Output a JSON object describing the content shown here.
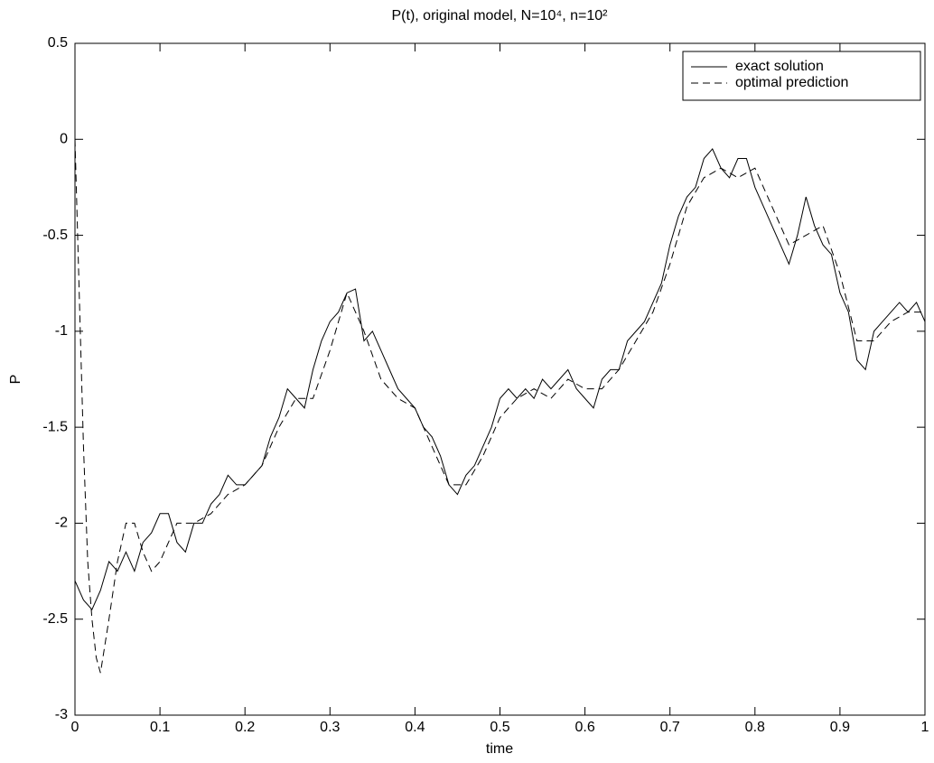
{
  "chart_data": {
    "type": "line",
    "title": "P(t), original model, N=10⁴, n=10²",
    "xlabel": "time",
    "ylabel": "P",
    "xlim": [
      0,
      1
    ],
    "ylim": [
      -3,
      0.5
    ],
    "xticks": [
      0,
      0.1,
      0.2,
      0.3,
      0.4,
      0.5,
      0.6,
      0.7,
      0.8,
      0.9,
      1
    ],
    "yticks": [
      -3,
      -2.5,
      -2,
      -1.5,
      -1,
      -0.5,
      0,
      0.5
    ],
    "grid": false,
    "legend": "upper right",
    "series": [
      {
        "name": "exact solution",
        "color": "#000000",
        "line_style": "solid",
        "x": [
          0,
          0.01,
          0.02,
          0.03,
          0.04,
          0.05,
          0.06,
          0.07,
          0.08,
          0.09,
          0.1,
          0.11,
          0.12,
          0.13,
          0.14,
          0.15,
          0.16,
          0.17,
          0.18,
          0.19,
          0.2,
          0.21,
          0.22,
          0.23,
          0.24,
          0.25,
          0.26,
          0.27,
          0.28,
          0.29,
          0.3,
          0.31,
          0.32,
          0.33,
          0.34,
          0.35,
          0.36,
          0.37,
          0.38,
          0.39,
          0.4,
          0.41,
          0.42,
          0.43,
          0.44,
          0.45,
          0.46,
          0.47,
          0.48,
          0.49,
          0.5,
          0.51,
          0.52,
          0.53,
          0.54,
          0.55,
          0.56,
          0.57,
          0.58,
          0.59,
          0.6,
          0.61,
          0.62,
          0.63,
          0.64,
          0.65,
          0.66,
          0.67,
          0.68,
          0.69,
          0.7,
          0.71,
          0.72,
          0.73,
          0.74,
          0.75,
          0.76,
          0.77,
          0.78,
          0.79,
          0.8,
          0.81,
          0.82,
          0.83,
          0.84,
          0.85,
          0.86,
          0.87,
          0.88,
          0.89,
          0.9,
          0.91,
          0.92,
          0.93,
          0.94,
          0.95,
          0.96,
          0.97,
          0.98,
          0.99,
          1
        ],
        "values": [
          -2.3,
          -2.4,
          -2.45,
          -2.35,
          -2.2,
          -2.25,
          -2.15,
          -2.25,
          -2.1,
          -2.05,
          -1.95,
          -1.95,
          -2.1,
          -2.15,
          -2.0,
          -2.0,
          -1.9,
          -1.85,
          -1.75,
          -1.8,
          -1.8,
          -1.75,
          -1.7,
          -1.55,
          -1.45,
          -1.3,
          -1.35,
          -1.4,
          -1.2,
          -1.05,
          -0.95,
          -0.9,
          -0.8,
          -0.78,
          -1.05,
          -1.0,
          -1.1,
          -1.2,
          -1.3,
          -1.35,
          -1.4,
          -1.5,
          -1.55,
          -1.65,
          -1.8,
          -1.85,
          -1.75,
          -1.7,
          -1.6,
          -1.5,
          -1.35,
          -1.3,
          -1.35,
          -1.3,
          -1.35,
          -1.25,
          -1.3,
          -1.25,
          -1.2,
          -1.3,
          -1.35,
          -1.4,
          -1.25,
          -1.2,
          -1.2,
          -1.05,
          -1.0,
          -0.95,
          -0.85,
          -0.75,
          -0.55,
          -0.4,
          -0.3,
          -0.25,
          -0.1,
          -0.05,
          -0.15,
          -0.2,
          -0.1,
          -0.1,
          -0.25,
          -0.35,
          -0.45,
          -0.55,
          -0.65,
          -0.5,
          -0.3,
          -0.45,
          -0.55,
          -0.6,
          -0.8,
          -0.9,
          -1.15,
          -1.2,
          -1.0,
          -0.95,
          -0.9,
          -0.85,
          -0.9,
          -0.85,
          -0.95
        ]
      },
      {
        "name": "optimal prediction",
        "color": "#000000",
        "line_style": "dashed",
        "x": [
          0,
          0.005,
          0.01,
          0.015,
          0.02,
          0.025,
          0.03,
          0.04,
          0.05,
          0.06,
          0.07,
          0.08,
          0.09,
          0.1,
          0.12,
          0.14,
          0.16,
          0.18,
          0.2,
          0.22,
          0.24,
          0.26,
          0.28,
          0.3,
          0.32,
          0.34,
          0.36,
          0.38,
          0.4,
          0.42,
          0.44,
          0.46,
          0.48,
          0.5,
          0.52,
          0.54,
          0.56,
          0.58,
          0.6,
          0.62,
          0.64,
          0.66,
          0.68,
          0.7,
          0.72,
          0.74,
          0.76,
          0.78,
          0.8,
          0.82,
          0.84,
          0.86,
          0.88,
          0.9,
          0.92,
          0.94,
          0.96,
          0.98,
          1
        ],
        "values": [
          0,
          -0.8,
          -1.6,
          -2.2,
          -2.5,
          -2.7,
          -2.78,
          -2.5,
          -2.2,
          -2.0,
          -2.0,
          -2.15,
          -2.25,
          -2.2,
          -2.0,
          -2.0,
          -1.95,
          -1.85,
          -1.8,
          -1.7,
          -1.5,
          -1.35,
          -1.35,
          -1.1,
          -0.8,
          -1.0,
          -1.25,
          -1.35,
          -1.4,
          -1.6,
          -1.8,
          -1.8,
          -1.65,
          -1.45,
          -1.35,
          -1.3,
          -1.35,
          -1.25,
          -1.3,
          -1.3,
          -1.2,
          -1.05,
          -0.9,
          -0.65,
          -0.35,
          -0.2,
          -0.15,
          -0.2,
          -0.15,
          -0.35,
          -0.55,
          -0.5,
          -0.45,
          -0.7,
          -1.05,
          -1.05,
          -0.95,
          -0.9,
          -0.9
        ]
      }
    ]
  }
}
